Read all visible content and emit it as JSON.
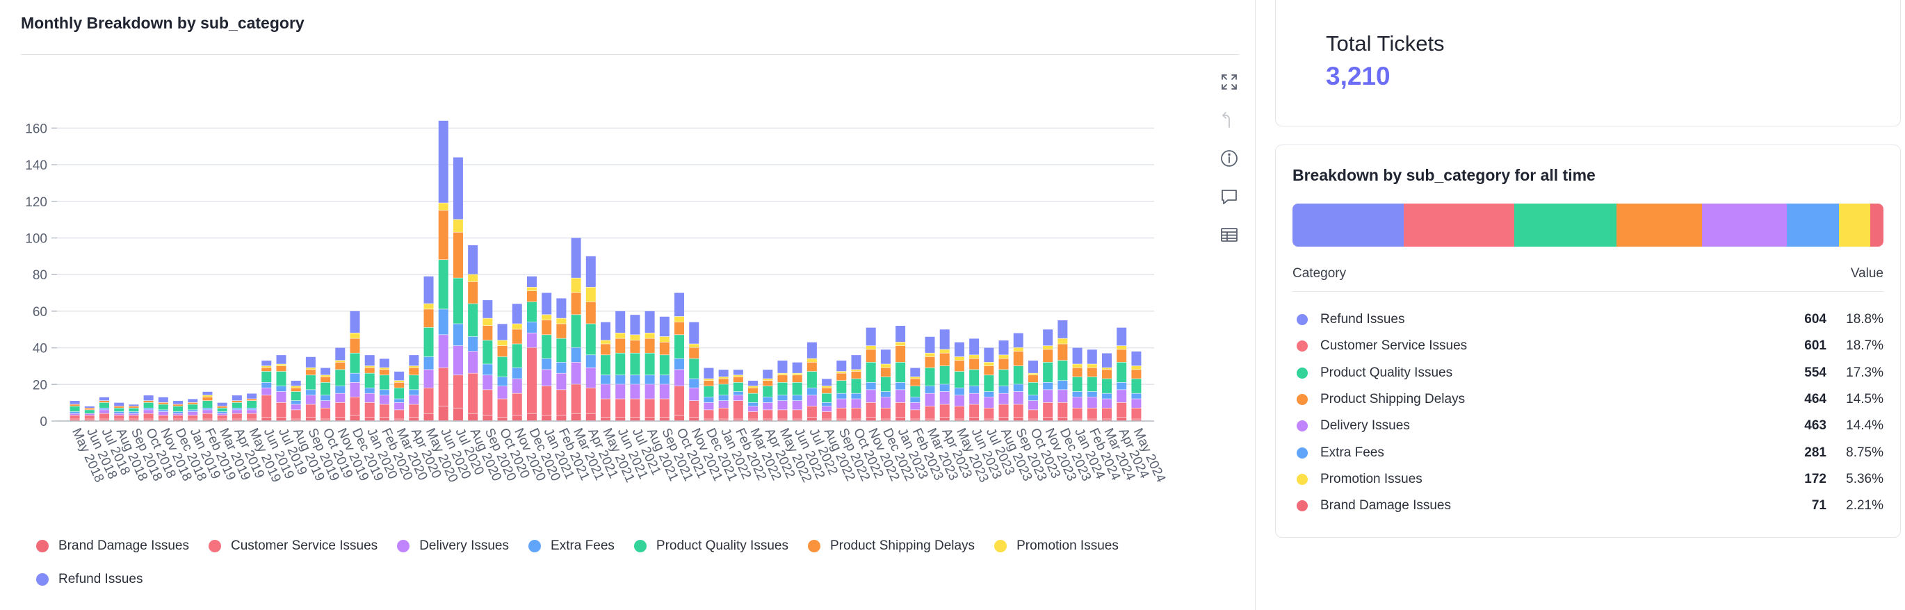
{
  "left_panel": {
    "title": "Monthly Breakdown by sub_category",
    "tools": [
      {
        "icon": "expand-icon",
        "label": "Expand"
      },
      {
        "icon": "drill-up-icon",
        "label": "Drill up"
      },
      {
        "icon": "info-icon",
        "label": "Info"
      },
      {
        "icon": "comment-icon",
        "label": "Comment"
      },
      {
        "icon": "table-icon",
        "label": "Show table"
      }
    ]
  },
  "chart_data": {
    "type": "bar",
    "stacked": true,
    "title": "Monthly Breakdown by sub_category",
    "xlabel": "",
    "ylabel": "",
    "ylim": [
      0,
      170
    ],
    "yticks": [
      0,
      20,
      40,
      60,
      80,
      100,
      120,
      140,
      160
    ],
    "grid": true,
    "legend_position": "bottom-left",
    "categories": [
      "May 2018",
      "Jun 2018",
      "Jul 2018",
      "Aug 2018",
      "Sep 2018",
      "Oct 2018",
      "Nov 2018",
      "Dec 2018",
      "Jan 2019",
      "Feb 2019",
      "Mar 2019",
      "Apr 2019",
      "May 2019",
      "Jun 2019",
      "Jul 2019",
      "Aug 2019",
      "Sep 2019",
      "Oct 2019",
      "Nov 2019",
      "Dec 2019",
      "Jan 2020",
      "Feb 2020",
      "Mar 2020",
      "Apr 2020",
      "May 2020",
      "Jun 2020",
      "Jul 2020",
      "Aug 2020",
      "Sep 2020",
      "Oct 2020",
      "Nov 2020",
      "Dec 2020",
      "Jan 2021",
      "Feb 2021",
      "Mar 2021",
      "Apr 2021",
      "May 2021",
      "Jun 2021",
      "Jul 2021",
      "Aug 2021",
      "Sep 2021",
      "Oct 2021",
      "Nov 2021",
      "Dec 2021",
      "Jan 2022",
      "Feb 2022",
      "Mar 2022",
      "Apr 2022",
      "May 2022",
      "Jun 2022",
      "Jul 2022",
      "Aug 2022",
      "Sep 2022",
      "Oct 2022",
      "Nov 2022",
      "Dec 2022",
      "Jan 2023",
      "Feb 2023",
      "Mar 2023",
      "Apr 2023",
      "May 2023",
      "Jun 2023",
      "Jul 2023",
      "Aug 2023",
      "Sep 2023",
      "Oct 2023",
      "Nov 2023",
      "Dec 2023",
      "Jan 2024",
      "Feb 2024",
      "Mar 2024",
      "Apr 2024",
      "May 2024"
    ],
    "totals": [
      11,
      8,
      13,
      10,
      9,
      14,
      13,
      11,
      12,
      16,
      10,
      14,
      15,
      33,
      36,
      22,
      35,
      29,
      40,
      60,
      36,
      34,
      27,
      36,
      79,
      164,
      144,
      96,
      66,
      53,
      64,
      79,
      70,
      67,
      100,
      90,
      54,
      60,
      58,
      60,
      57,
      70,
      54,
      29,
      28,
      28,
      22,
      28,
      33,
      32,
      43,
      23,
      33,
      36,
      51,
      39,
      52,
      29,
      46,
      50,
      43,
      45,
      40,
      44,
      48,
      33,
      50,
      55,
      40,
      39,
      37,
      51,
      38
    ],
    "series": [
      {
        "name": "Brand Damage Issues",
        "color": "#f06b77",
        "values": [
          1,
          1,
          1,
          1,
          1,
          1,
          1,
          1,
          1,
          1,
          1,
          1,
          1,
          2,
          2,
          1,
          2,
          1,
          2,
          3,
          2,
          2,
          1,
          2,
          4,
          8,
          7,
          4,
          3,
          2,
          3,
          4,
          3,
          3,
          4,
          4,
          2,
          2,
          2,
          2,
          2,
          3,
          2,
          1,
          1,
          1,
          1,
          1,
          1,
          1,
          2,
          1,
          1,
          1,
          2,
          1,
          2,
          1,
          1,
          2,
          1,
          2,
          1,
          2,
          2,
          1,
          2,
          2,
          1,
          1,
          1,
          2,
          1
        ]
      },
      {
        "name": "Customer Service Issues",
        "color": "#f5727e",
        "values": [
          2,
          2,
          3,
          2,
          2,
          3,
          2,
          2,
          2,
          3,
          2,
          3,
          3,
          12,
          8,
          5,
          7,
          6,
          8,
          10,
          8,
          7,
          5,
          7,
          14,
          21,
          18,
          22,
          14,
          10,
          12,
          36,
          16,
          14,
          16,
          14,
          10,
          10,
          10,
          10,
          10,
          16,
          9,
          5,
          6,
          10,
          4,
          5,
          5,
          5,
          6,
          4,
          6,
          6,
          8,
          6,
          8,
          5,
          7,
          7,
          7,
          7,
          6,
          7,
          7,
          5,
          8,
          8,
          6,
          6,
          6,
          8,
          6
        ]
      },
      {
        "name": "Delivery Issues",
        "color": "#c084fc",
        "values": [
          1,
          1,
          2,
          1,
          1,
          2,
          2,
          1,
          2,
          2,
          1,
          2,
          2,
          4,
          6,
          3,
          5,
          4,
          5,
          8,
          5,
          5,
          4,
          5,
          10,
          18,
          16,
          12,
          8,
          7,
          8,
          8,
          9,
          9,
          12,
          11,
          8,
          8,
          8,
          8,
          8,
          9,
          7,
          4,
          4,
          3,
          3,
          4,
          5,
          5,
          6,
          3,
          5,
          5,
          7,
          6,
          7,
          4,
          7,
          7,
          6,
          6,
          6,
          6,
          7,
          5,
          7,
          7,
          6,
          6,
          5,
          7,
          5
        ]
      },
      {
        "name": "Extra Fees",
        "color": "#60a5fa",
        "values": [
          1,
          0,
          1,
          1,
          1,
          1,
          1,
          1,
          1,
          1,
          1,
          1,
          1,
          3,
          3,
          2,
          3,
          3,
          4,
          5,
          3,
          3,
          2,
          3,
          7,
          14,
          12,
          8,
          6,
          5,
          6,
          6,
          6,
          6,
          8,
          7,
          5,
          5,
          5,
          5,
          5,
          6,
          5,
          3,
          3,
          2,
          2,
          3,
          3,
          3,
          4,
          2,
          3,
          3,
          4,
          3,
          4,
          3,
          4,
          4,
          4,
          4,
          3,
          4,
          4,
          3,
          4,
          5,
          3,
          3,
          3,
          4,
          3
        ]
      },
      {
        "name": "Product Quality Issues",
        "color": "#34d399",
        "values": [
          3,
          2,
          3,
          2,
          2,
          3,
          3,
          3,
          3,
          4,
          2,
          3,
          4,
          6,
          8,
          5,
          8,
          7,
          9,
          11,
          8,
          8,
          6,
          8,
          16,
          27,
          25,
          18,
          13,
          11,
          13,
          11,
          13,
          13,
          18,
          17,
          11,
          12,
          12,
          12,
          11,
          13,
          11,
          6,
          6,
          5,
          5,
          6,
          7,
          7,
          9,
          5,
          7,
          8,
          11,
          8,
          11,
          6,
          10,
          10,
          9,
          9,
          9,
          9,
          10,
          7,
          11,
          11,
          8,
          8,
          8,
          11,
          8
        ]
      },
      {
        "name": "Product Shipping Delays",
        "color": "#fb923c",
        "values": [
          1,
          1,
          1,
          1,
          1,
          1,
          1,
          1,
          1,
          2,
          1,
          1,
          1,
          2,
          3,
          2,
          3,
          3,
          4,
          8,
          3,
          3,
          3,
          4,
          10,
          27,
          25,
          12,
          8,
          6,
          8,
          6,
          8,
          8,
          12,
          12,
          6,
          8,
          7,
          8,
          7,
          7,
          6,
          3,
          3,
          3,
          3,
          3,
          4,
          4,
          5,
          3,
          4,
          4,
          7,
          5,
          9,
          4,
          6,
          7,
          6,
          6,
          5,
          6,
          8,
          4,
          7,
          9,
          5,
          5,
          5,
          7,
          5
        ]
      },
      {
        "name": "Promotion Issues",
        "color": "#fde047",
        "values": [
          0,
          0,
          0,
          0,
          0,
          0,
          0,
          0,
          0,
          1,
          0,
          0,
          0,
          1,
          1,
          1,
          1,
          1,
          1,
          3,
          1,
          1,
          1,
          1,
          3,
          4,
          7,
          4,
          4,
          3,
          3,
          2,
          3,
          3,
          8,
          8,
          2,
          3,
          3,
          3,
          3,
          3,
          2,
          1,
          1,
          1,
          1,
          1,
          1,
          1,
          2,
          1,
          1,
          1,
          2,
          2,
          2,
          1,
          2,
          2,
          2,
          2,
          2,
          2,
          2,
          1,
          2,
          3,
          2,
          2,
          1,
          2,
          2
        ]
      },
      {
        "name": "Refund Issues",
        "color": "#818cf8",
        "values": [
          2,
          1,
          2,
          2,
          1,
          3,
          3,
          2,
          2,
          2,
          2,
          3,
          3,
          3,
          5,
          3,
          6,
          4,
          7,
          12,
          6,
          5,
          5,
          6,
          15,
          45,
          34,
          16,
          10,
          9,
          11,
          6,
          12,
          11,
          22,
          17,
          10,
          12,
          11,
          12,
          11,
          13,
          12,
          6,
          4,
          3,
          3,
          5,
          7,
          6,
          9,
          4,
          6,
          8,
          10,
          8,
          9,
          5,
          9,
          11,
          8,
          9,
          8,
          8,
          8,
          7,
          9,
          10,
          9,
          8,
          8,
          10,
          8
        ]
      }
    ]
  },
  "summary": {
    "label": "Total Tickets",
    "value": "3,210",
    "accent": "#6b6ef5"
  },
  "breakdown": {
    "title": "Breakdown by sub_category for all time",
    "col_category": "Category",
    "col_value": "Value",
    "rows": [
      {
        "name": "Refund Issues",
        "value": "604",
        "pct": "18.8%",
        "share": 18.8,
        "color": "#818cf8"
      },
      {
        "name": "Customer Service Issues",
        "value": "601",
        "pct": "18.7%",
        "share": 18.7,
        "color": "#f5727e"
      },
      {
        "name": "Product Quality Issues",
        "value": "554",
        "pct": "17.3%",
        "share": 17.3,
        "color": "#34d399"
      },
      {
        "name": "Product Shipping Delays",
        "value": "464",
        "pct": "14.5%",
        "share": 14.5,
        "color": "#fb923c"
      },
      {
        "name": "Delivery Issues",
        "value": "463",
        "pct": "14.4%",
        "share": 14.4,
        "color": "#c084fc"
      },
      {
        "name": "Extra Fees",
        "value": "281",
        "pct": "8.75%",
        "share": 8.75,
        "color": "#60a5fa"
      },
      {
        "name": "Promotion Issues",
        "value": "172",
        "pct": "5.36%",
        "share": 5.36,
        "color": "#fde047"
      },
      {
        "name": "Brand Damage Issues",
        "value": "71",
        "pct": "2.21%",
        "share": 2.21,
        "color": "#f06b77"
      }
    ]
  }
}
